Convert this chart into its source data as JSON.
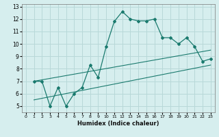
{
  "xlabel": "Humidex (Indice chaleur)",
  "bg_color": "#d6eeee",
  "grid_color": "#b8d8d8",
  "line_color": "#1a7a6e",
  "xlim": [
    -0.5,
    23.5
  ],
  "ylim": [
    4.5,
    13.2
  ],
  "xticks": [
    0,
    1,
    2,
    3,
    4,
    5,
    6,
    7,
    8,
    9,
    10,
    11,
    12,
    13,
    14,
    15,
    16,
    17,
    18,
    19,
    20,
    21,
    22,
    23
  ],
  "yticks": [
    5,
    6,
    7,
    8,
    9,
    10,
    11,
    12,
    13
  ],
  "curve1_x": [
    1,
    2,
    3,
    4,
    5,
    6,
    7,
    8,
    9,
    10,
    11,
    12,
    13,
    14,
    15,
    16,
    17,
    18,
    19,
    20,
    21,
    22,
    23
  ],
  "curve1_y": [
    7.0,
    7.0,
    5.0,
    6.5,
    5.0,
    6.0,
    6.5,
    8.3,
    7.3,
    9.8,
    11.8,
    12.6,
    12.0,
    11.85,
    11.85,
    12.0,
    10.5,
    10.5,
    10.0,
    10.5,
    9.8,
    8.6,
    8.8
  ],
  "line2_x": [
    1,
    23
  ],
  "line2_y": [
    7.0,
    9.5
  ],
  "line3_x": [
    1,
    23
  ],
  "line3_y": [
    5.5,
    8.3
  ]
}
